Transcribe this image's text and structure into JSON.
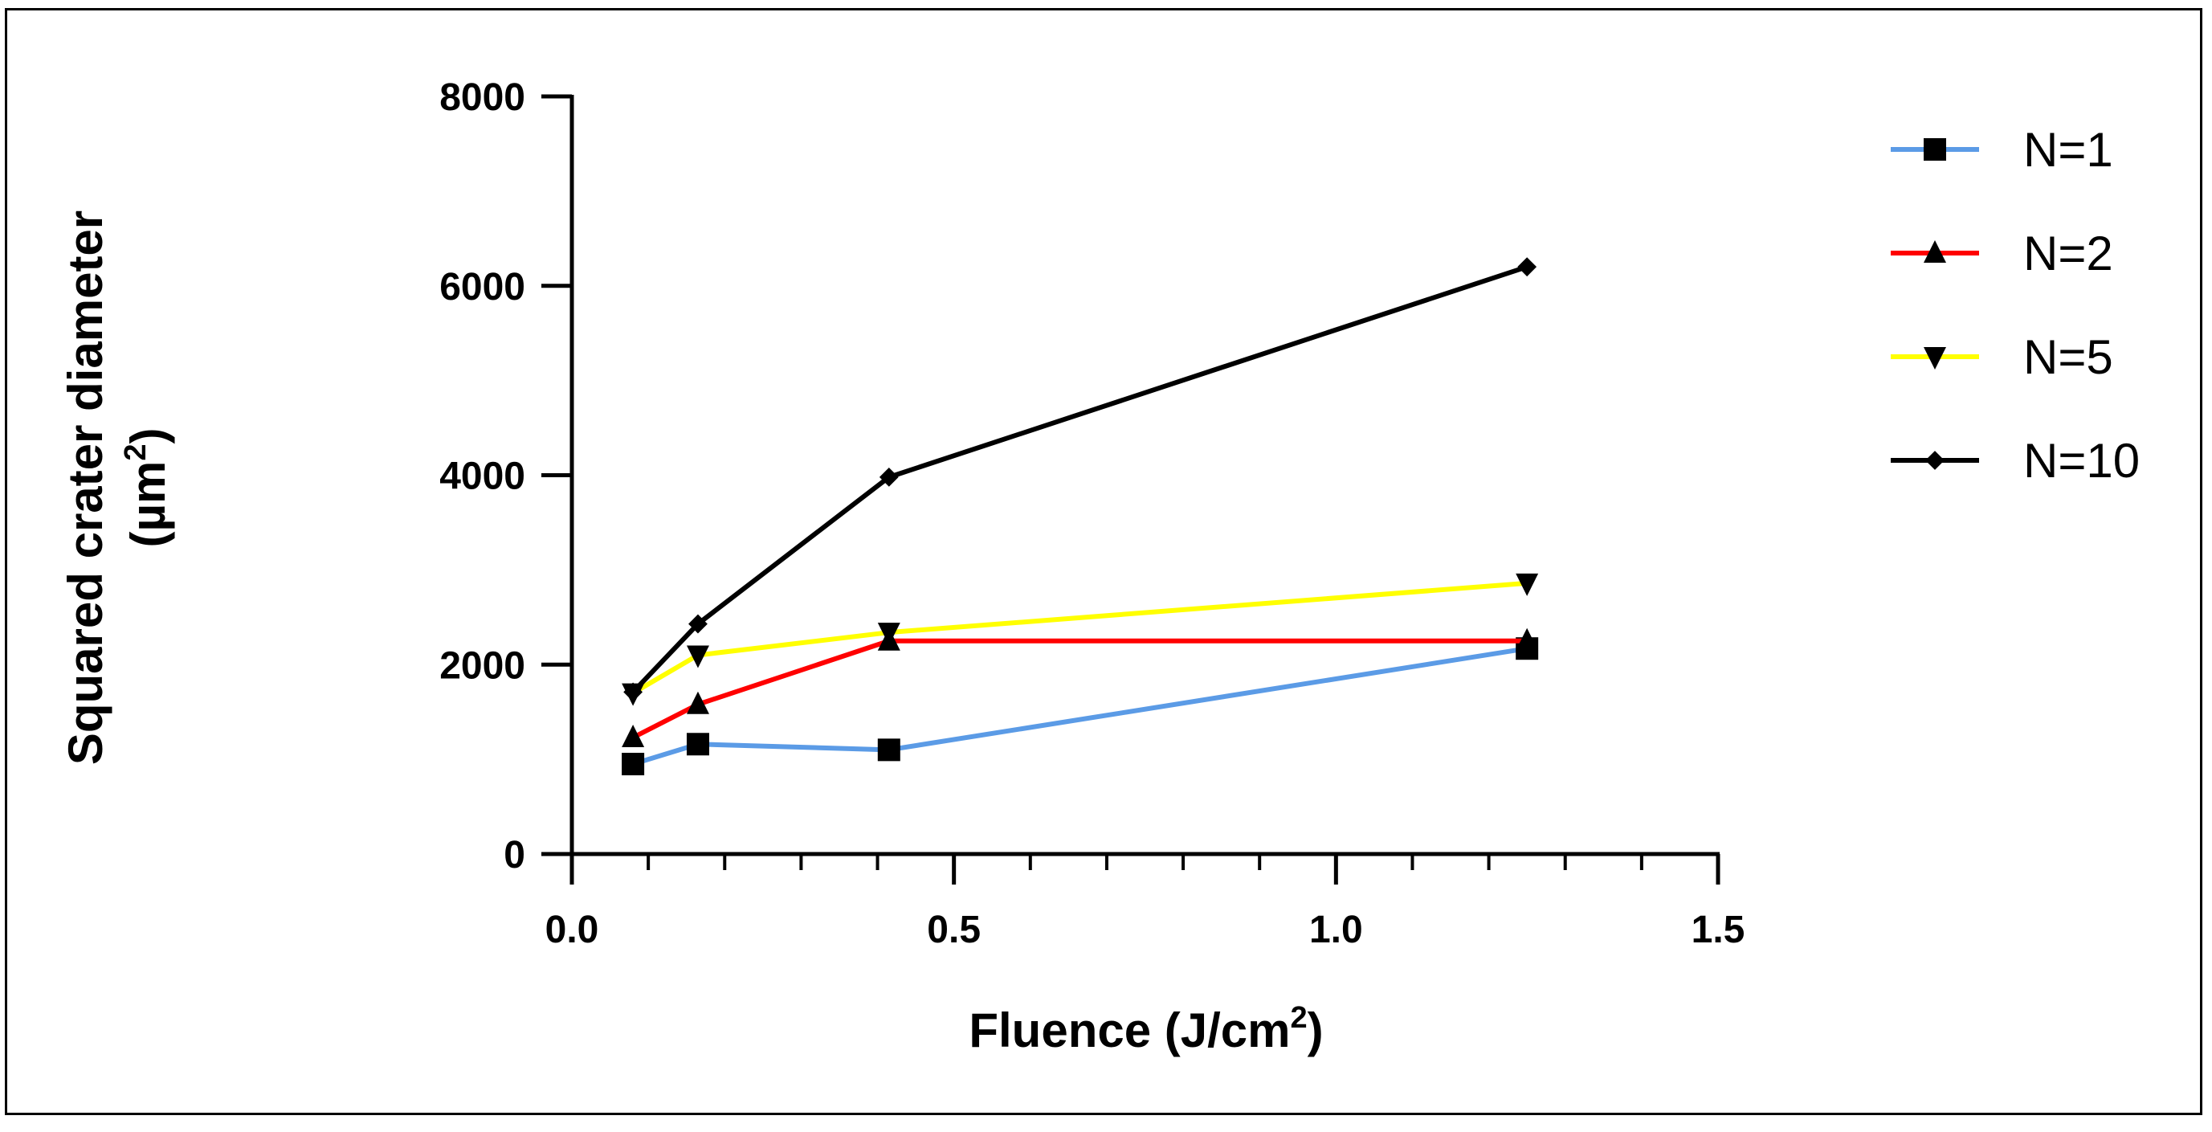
{
  "chart_data": {
    "type": "line",
    "title": "",
    "xlabel": "Fluence (J/cm²)",
    "xlabel_parts": {
      "base": "Fluence (J/cm",
      "sup": "2",
      "close": ")"
    },
    "ylabel": "Squared crater diameter (µm²)",
    "ylabel_parts": {
      "line1": "Squared crater diameter",
      "line2_base": "(µm",
      "line2_sup": "2",
      "line2_close": ")"
    },
    "xlim": [
      0.0,
      1.5
    ],
    "ylim": [
      0,
      8000
    ],
    "x_major_ticks": [
      0.0,
      0.5,
      1.0,
      1.5
    ],
    "x_tick_labels": [
      "0.0",
      "0.5",
      "1.0",
      "1.5"
    ],
    "x_minor_step": 0.1,
    "y_ticks": [
      0,
      2000,
      4000,
      6000,
      8000
    ],
    "y_tick_labels": [
      "0",
      "2000",
      "4000",
      "6000",
      "8000"
    ],
    "legend_position": "right",
    "x": [
      0.08,
      0.165,
      0.415,
      1.25
    ],
    "series": [
      {
        "name": "N=1",
        "color": "#5B9BE6",
        "marker": "square",
        "values": [
          950,
          1160,
          1100,
          2170
        ]
      },
      {
        "name": "N=2",
        "color": "#FF0000",
        "marker": "triangle-up",
        "values": [
          1230,
          1580,
          2250,
          2250
        ]
      },
      {
        "name": "N=5",
        "color": "#FFFF00",
        "marker": "triangle-down",
        "values": [
          1700,
          2100,
          2340,
          2860
        ]
      },
      {
        "name": "N=10",
        "color": "#000000",
        "marker": "diamond",
        "values": [
          1710,
          2430,
          3980,
          6200
        ]
      }
    ]
  }
}
